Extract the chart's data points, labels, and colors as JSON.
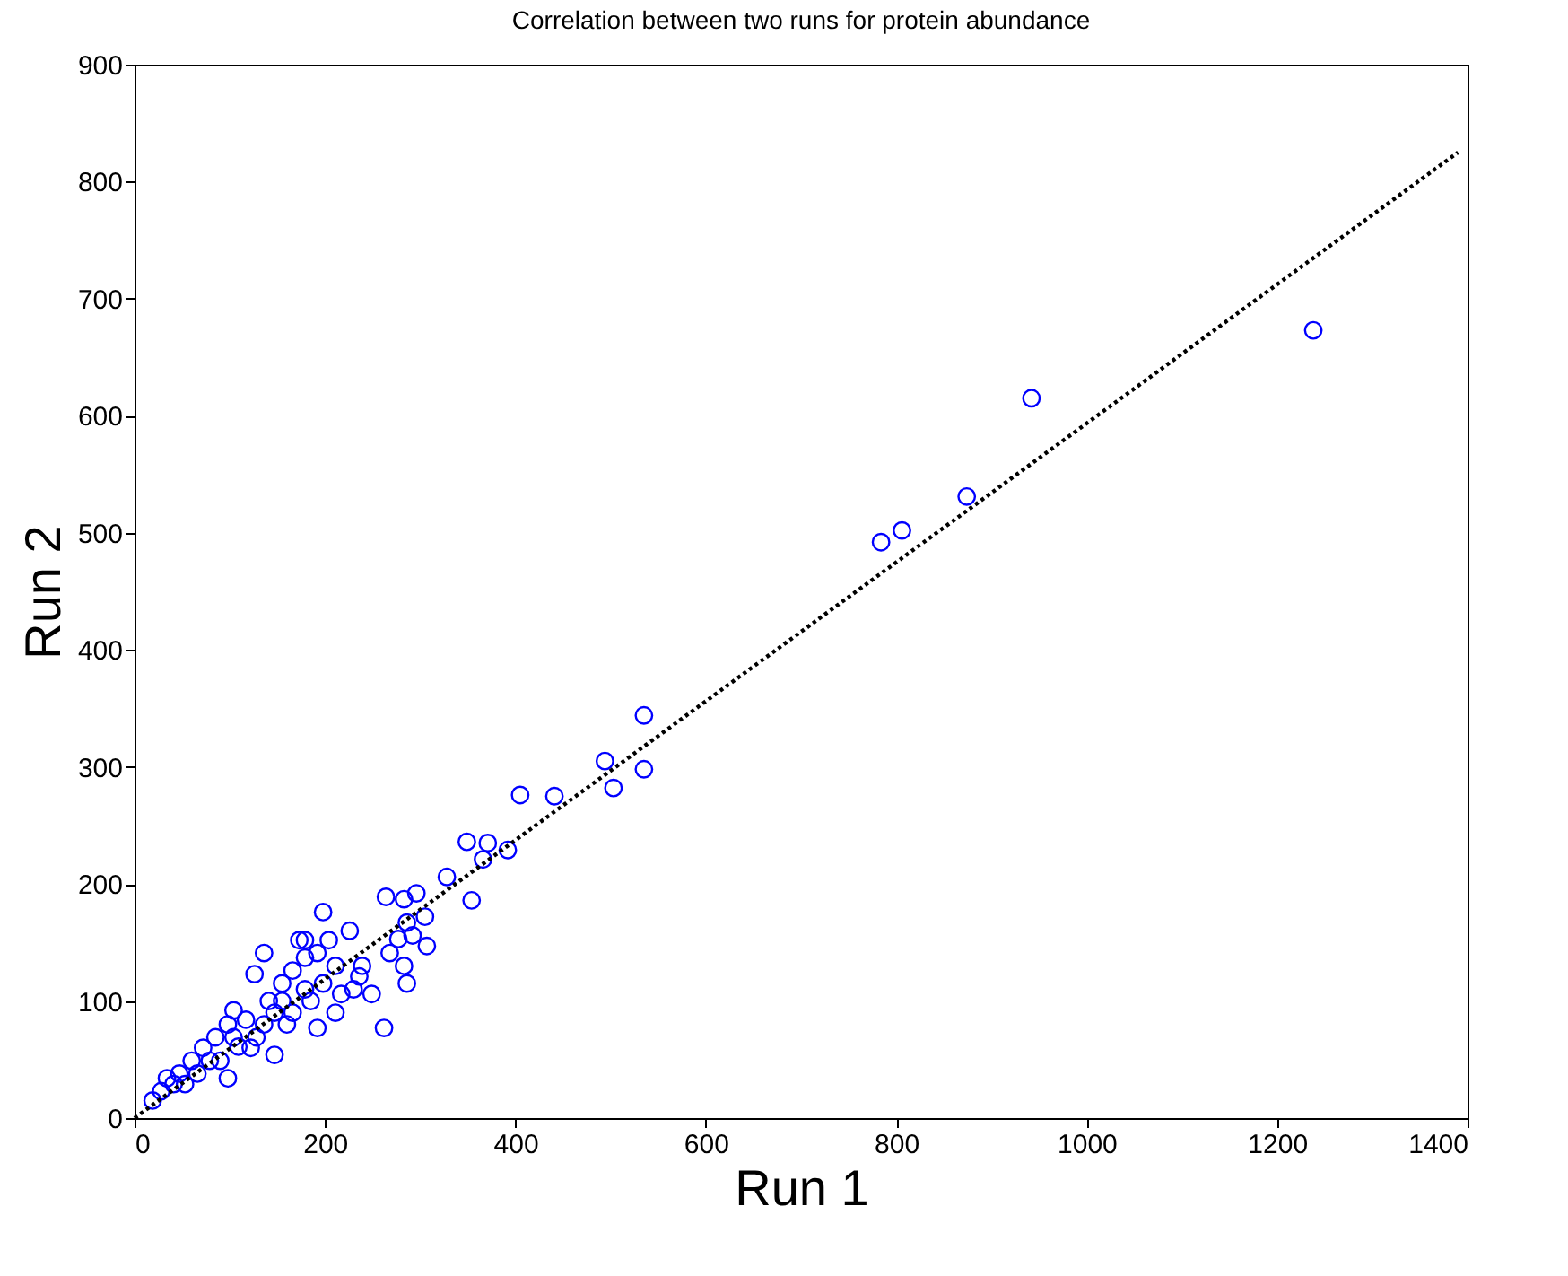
{
  "chart_data": {
    "type": "scatter",
    "title": "Correlation between two runs for protein abundance",
    "xlabel": "Run 1",
    "ylabel": "Run 2",
    "xlim": [
      0,
      1400
    ],
    "xticks": [
      0,
      200,
      400,
      600,
      800,
      1000,
      1200,
      1400
    ],
    "ylim": [
      0,
      900
    ],
    "yticks": [
      0,
      100,
      200,
      300,
      400,
      500,
      600,
      700,
      800,
      900
    ],
    "grid": false,
    "series": [
      {
        "marker": "circle",
        "color": "#0000ff",
        "x": [
          1238,
          942,
          874,
          806,
          784,
          535,
          494,
          535,
          503,
          441,
          405,
          349,
          371,
          392,
          366,
          354,
          328,
          264,
          283,
          296,
          198,
          307,
          286,
          262,
          283,
          268,
          226,
          136,
          173,
          126,
          104,
          98,
          147,
          192,
          211,
          249,
          236,
          179,
          155,
          141,
          117,
          85,
          72,
          60,
          47,
          28,
          19,
          41,
          66,
          90,
          109,
          128,
          166,
          179,
          198,
          211,
          217,
          230,
          239,
          286,
          292,
          277,
          305,
          185,
          160,
          136,
          147,
          53,
          34,
          79,
          104,
          122,
          98,
          155,
          166,
          192,
          204,
          179
        ],
        "values": [
          673,
          615,
          531,
          502,
          492,
          344,
          305,
          298,
          282,
          275,
          276,
          236,
          235,
          229,
          221,
          186,
          206,
          189,
          187,
          192,
          176,
          147,
          115,
          77,
          130,
          141,
          160,
          141,
          152,
          123,
          92,
          34,
          54,
          77,
          90,
          106,
          121,
          137,
          115,
          100,
          84,
          69,
          60,
          49,
          38,
          23,
          15,
          29,
          38,
          49,
          61,
          69,
          90,
          110,
          115,
          130,
          106,
          110,
          130,
          167,
          156,
          153,
          172,
          100,
          80,
          80,
          90,
          29,
          34,
          49,
          69,
          60,
          80,
          100,
          126,
          141,
          152,
          152
        ]
      },
      {
        "type": "line",
        "marker": "none",
        "line_style": "dotted",
        "color": "#000000",
        "x": [
          0,
          1390
        ],
        "values": [
          0,
          825
        ]
      }
    ]
  }
}
